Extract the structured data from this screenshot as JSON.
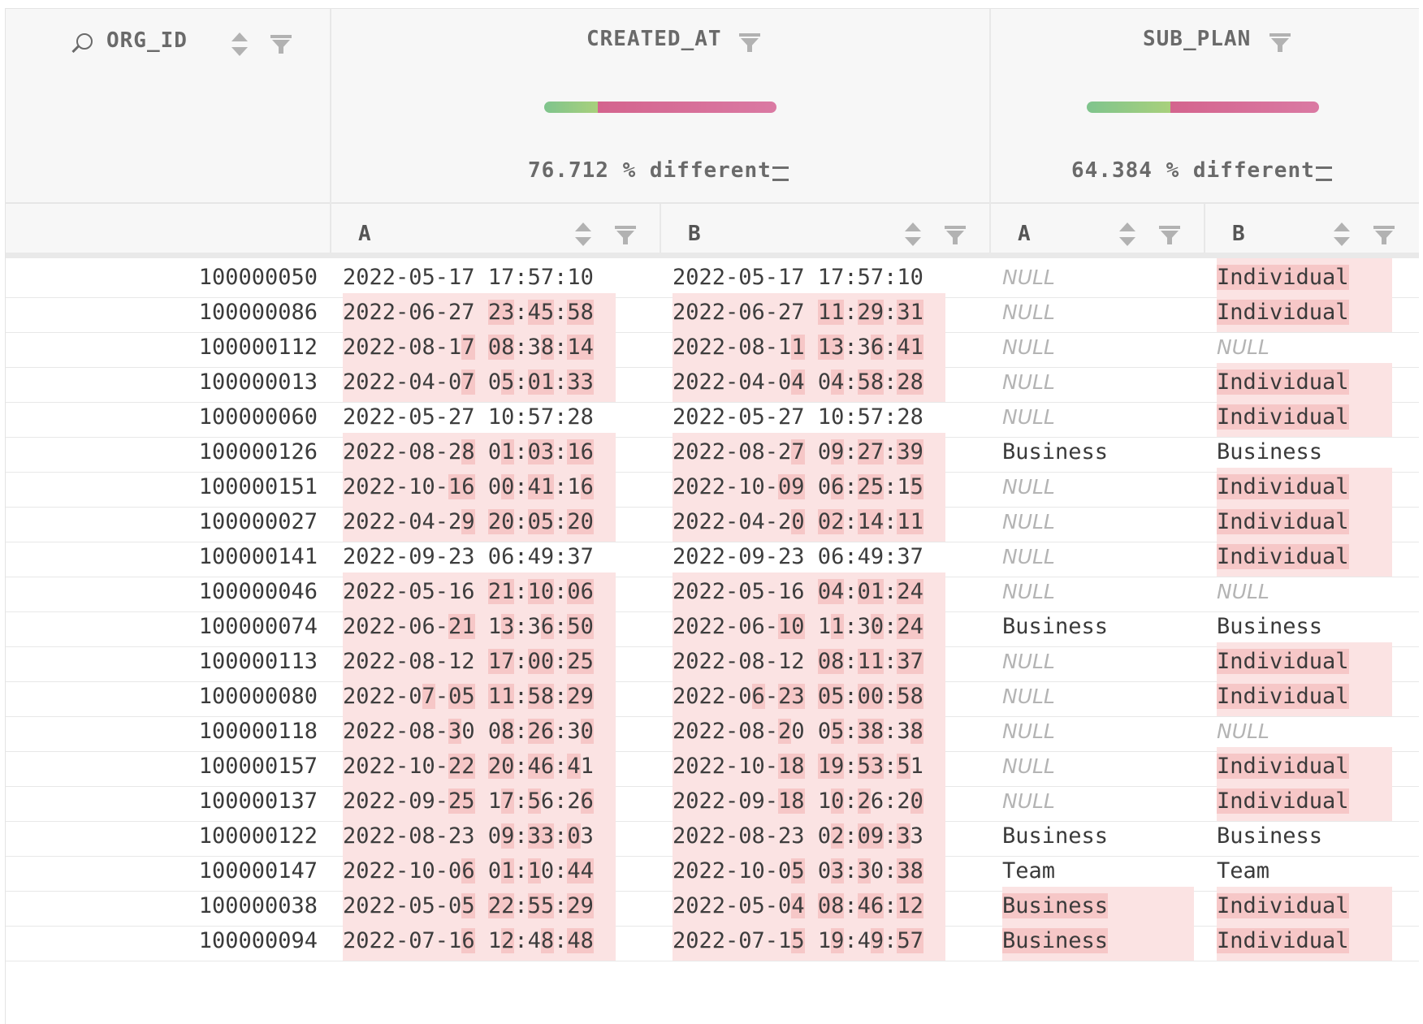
{
  "columns": {
    "org_id": {
      "label": "ORG_ID"
    },
    "created_at": {
      "label": "CREATED_AT",
      "diff_text": "76.712 % different",
      "same_fraction": 0.23
    },
    "sub_plan": {
      "label": "SUB_PLAN",
      "diff_text": "64.384 % different",
      "same_fraction": 0.36
    }
  },
  "sub_headers": {
    "a": "A",
    "b": "B"
  },
  "colors": {
    "same": "#7fc48d",
    "diff": "#d4648e",
    "diff_bg": "#fbe3e3",
    "diff_char": "#f6c7c7"
  },
  "icons": [
    "search-icon",
    "sort-icon",
    "filter-icon",
    "equals-icon"
  ],
  "rows": [
    {
      "org_id": "100000050",
      "created_a": "2022-05-17 17:57:10",
      "created_b": "2022-05-17 17:57:10",
      "plan_a": "NULL",
      "plan_b": "Individual"
    },
    {
      "org_id": "100000086",
      "created_a": "2022-06-27 23:45:58",
      "created_b": "2022-06-27 11:29:31",
      "plan_a": "NULL",
      "plan_b": "Individual"
    },
    {
      "org_id": "100000112",
      "created_a": "2022-08-17 08:38:14",
      "created_b": "2022-08-11 13:36:41",
      "plan_a": "NULL",
      "plan_b": "NULL"
    },
    {
      "org_id": "100000013",
      "created_a": "2022-04-07 05:01:33",
      "created_b": "2022-04-04 04:58:28",
      "plan_a": "NULL",
      "plan_b": "Individual"
    },
    {
      "org_id": "100000060",
      "created_a": "2022-05-27 10:57:28",
      "created_b": "2022-05-27 10:57:28",
      "plan_a": "NULL",
      "plan_b": "Individual"
    },
    {
      "org_id": "100000126",
      "created_a": "2022-08-28 01:03:16",
      "created_b": "2022-08-27 09:27:39",
      "plan_a": "Business",
      "plan_b": "Business"
    },
    {
      "org_id": "100000151",
      "created_a": "2022-10-16 00:41:16",
      "created_b": "2022-10-09 06:25:15",
      "plan_a": "NULL",
      "plan_b": "Individual"
    },
    {
      "org_id": "100000027",
      "created_a": "2022-04-29 20:05:20",
      "created_b": "2022-04-20 02:14:11",
      "plan_a": "NULL",
      "plan_b": "Individual"
    },
    {
      "org_id": "100000141",
      "created_a": "2022-09-23 06:49:37",
      "created_b": "2022-09-23 06:49:37",
      "plan_a": "NULL",
      "plan_b": "Individual"
    },
    {
      "org_id": "100000046",
      "created_a": "2022-05-16 21:10:06",
      "created_b": "2022-05-16 04:01:24",
      "plan_a": "NULL",
      "plan_b": "NULL"
    },
    {
      "org_id": "100000074",
      "created_a": "2022-06-21 13:36:50",
      "created_b": "2022-06-10 11:30:24",
      "plan_a": "Business",
      "plan_b": "Business"
    },
    {
      "org_id": "100000113",
      "created_a": "2022-08-12 17:00:25",
      "created_b": "2022-08-12 08:11:37",
      "plan_a": "NULL",
      "plan_b": "Individual"
    },
    {
      "org_id": "100000080",
      "created_a": "2022-07-05 11:58:29",
      "created_b": "2022-06-23 05:00:58",
      "plan_a": "NULL",
      "plan_b": "Individual"
    },
    {
      "org_id": "100000118",
      "created_a": "2022-08-30 08:26:30",
      "created_b": "2022-08-20 05:38:38",
      "plan_a": "NULL",
      "plan_b": "NULL"
    },
    {
      "org_id": "100000157",
      "created_a": "2022-10-22 20:46:41",
      "created_b": "2022-10-18 19:53:51",
      "plan_a": "NULL",
      "plan_b": "Individual"
    },
    {
      "org_id": "100000137",
      "created_a": "2022-09-25 17:56:26",
      "created_b": "2022-09-18 10:26:20",
      "plan_a": "NULL",
      "plan_b": "Individual"
    },
    {
      "org_id": "100000122",
      "created_a": "2022-08-23 09:33:03",
      "created_b": "2022-08-23 02:09:33",
      "plan_a": "Business",
      "plan_b": "Business"
    },
    {
      "org_id": "100000147",
      "created_a": "2022-10-06 01:10:44",
      "created_b": "2022-10-05 03:30:38",
      "plan_a": "Team",
      "plan_b": "Team"
    },
    {
      "org_id": "100000038",
      "created_a": "2022-05-05 22:55:29",
      "created_b": "2022-05-04 08:46:12",
      "plan_a": "Business",
      "plan_b": "Individual"
    },
    {
      "org_id": "100000094",
      "created_a": "2022-07-16 12:48:48",
      "created_b": "2022-07-15 19:49:57",
      "plan_a": "Business",
      "plan_b": "Individual"
    }
  ]
}
